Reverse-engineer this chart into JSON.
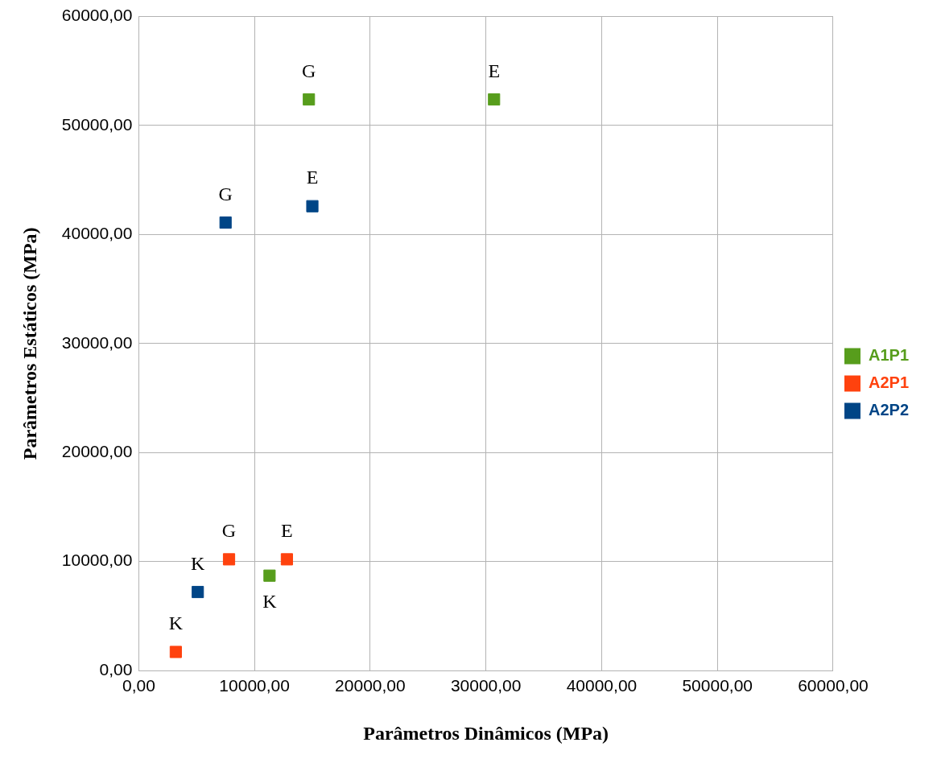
{
  "chart_data": {
    "type": "scatter",
    "xlabel": "Parâmetros Dinâmicos (MPa)",
    "ylabel": "Parâmetros Estáticos (MPa)",
    "xlim": [
      0,
      60000
    ],
    "ylim": [
      0,
      60000
    ],
    "xticks": [
      {
        "value": 0,
        "label": "0,00"
      },
      {
        "value": 10000,
        "label": "10000,00"
      },
      {
        "value": 20000,
        "label": "20000,00"
      },
      {
        "value": 30000,
        "label": "30000,00"
      },
      {
        "value": 40000,
        "label": "40000,00"
      },
      {
        "value": 50000,
        "label": "50000,00"
      },
      {
        "value": 60000,
        "label": "60000,00"
      }
    ],
    "yticks": [
      {
        "value": 0,
        "label": "0,00"
      },
      {
        "value": 10000,
        "label": "10000,00"
      },
      {
        "value": 20000,
        "label": "20000,00"
      },
      {
        "value": 30000,
        "label": "30000,00"
      },
      {
        "value": 40000,
        "label": "40000,00"
      },
      {
        "value": 50000,
        "label": "50000,00"
      },
      {
        "value": 60000,
        "label": "60000,00"
      }
    ],
    "grid": true,
    "legend": "right",
    "marker": "square",
    "series": [
      {
        "name": "A1P1",
        "color": "#579d1c",
        "x": [
          14700,
          30700,
          11300
        ],
        "values": [
          52400,
          52400,
          8700
        ]
      },
      {
        "name": "A2P1",
        "color": "#ff420e",
        "x": [
          7800,
          12800,
          3200
        ],
        "values": [
          10200,
          10200,
          1700
        ]
      },
      {
        "name": "A2P2",
        "color": "#004586",
        "x": [
          7500,
          15000,
          5100
        ],
        "values": [
          41100,
          42600,
          7200
        ]
      }
    ],
    "annotations": [
      {
        "text": "G",
        "x": 14700,
        "y": 52400
      },
      {
        "text": "E",
        "x": 30700,
        "y": 52400
      },
      {
        "text": "K",
        "x": 11300,
        "y": 8700
      },
      {
        "text": "G",
        "x": 7800,
        "y": 10200
      },
      {
        "text": "E",
        "x": 12800,
        "y": 10200
      },
      {
        "text": "K",
        "x": 3200,
        "y": 1700
      },
      {
        "text": "G",
        "x": 7500,
        "y": 41100
      },
      {
        "text": "E",
        "x": 15000,
        "y": 42600
      },
      {
        "text": "K",
        "x": 5100,
        "y": 7200
      }
    ]
  }
}
